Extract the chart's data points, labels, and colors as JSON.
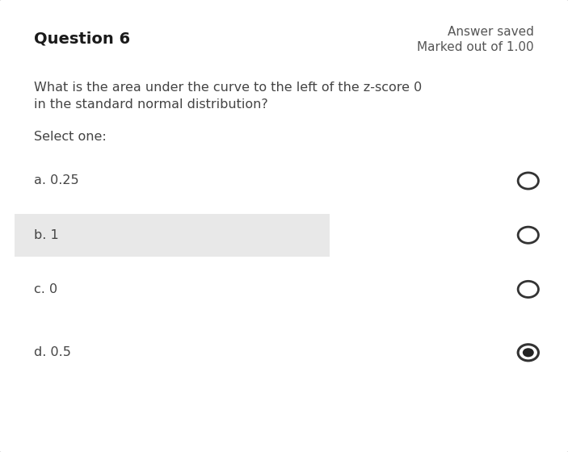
{
  "title": "Question 6",
  "answer_saved_text": "Answer saved",
  "marked_text": "Marked out of 1.00",
  "question_text": "What is the area under the curve to the left of the z-score 0\nin the standard normal distribution?",
  "select_text": "Select one:",
  "options": [
    {
      "label": "a. 0.25",
      "highlighted": false,
      "selected": false
    },
    {
      "label": "b. 1",
      "highlighted": true,
      "selected": false
    },
    {
      "label": "c. 0",
      "highlighted": false,
      "selected": false
    },
    {
      "label": "d. 0.5",
      "highlighted": false,
      "selected": true
    }
  ],
  "bg_color": "#e8e8e8",
  "card_bg": "#ffffff",
  "card_border": "#cccccc",
  "highlight_color": "#e8e8e8",
  "title_color": "#1a1a1a",
  "question_color": "#444444",
  "option_color": "#444444",
  "answer_saved_color": "#555555",
  "radio_border_color": "#333333",
  "radio_fill_selected": "#222222",
  "radio_size": 0.018,
  "font_size_title": 14,
  "font_size_question": 11.5,
  "font_size_option": 11.5,
  "font_size_meta": 11
}
